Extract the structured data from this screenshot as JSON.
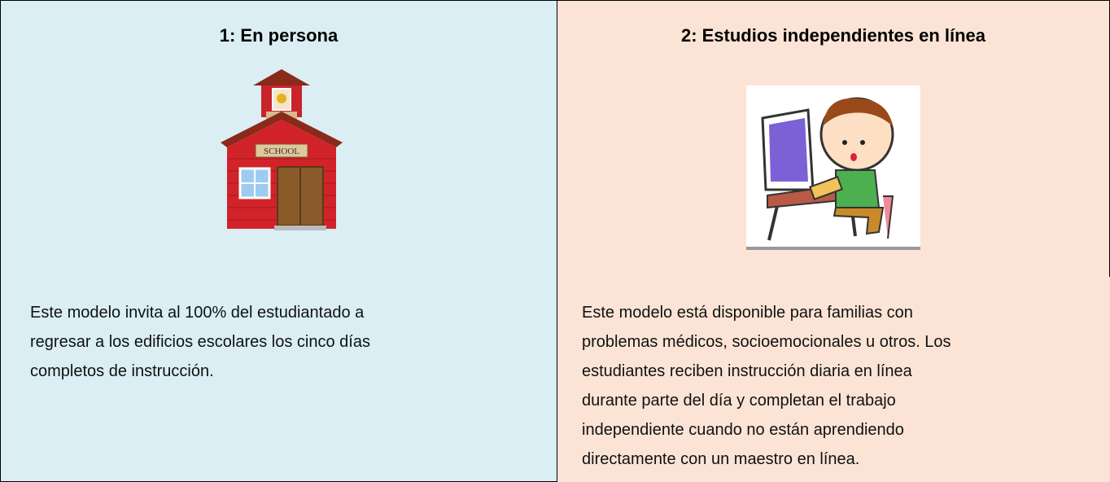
{
  "table": {
    "columns": [
      {
        "title": "1: En persona",
        "description": [
          "Este modelo invita al 100% del estudiantado a",
          "regresar a los edificios escolares los cinco días",
          "completos de instrucción."
        ]
      },
      {
        "title": "2: Estudios independientes en línea",
        "description": [
          "Este modelo está disponible para familias con",
          "problemas médicos, socioemocionales u otros. Los",
          "estudiantes reciben instrucción diaria en línea",
          "durante parte del día y completan el trabajo",
          "independiente cuando no están aprendiendo",
          "directamente con un maestro en línea."
        ]
      }
    ]
  }
}
